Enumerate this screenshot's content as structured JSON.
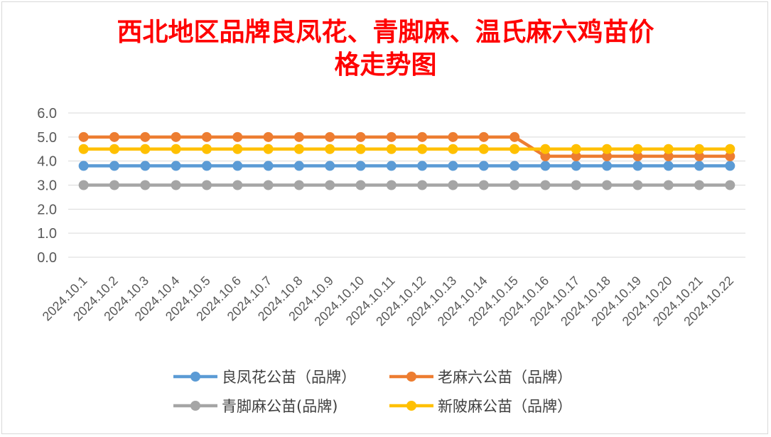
{
  "chart_data": {
    "type": "line",
    "title": "西北地区品牌良凤花、青脚麻、温氏麻六鸡苗价格走势图",
    "title_lines": [
      "西北地区品牌良凤花、青脚麻、温氏麻六鸡苗价",
      "格走势图"
    ],
    "categories": [
      "2024.10.1",
      "2024.10.2",
      "2024.10.3",
      "2024.10.4",
      "2024.10.5",
      "2024.10.6",
      "2024.10.7",
      "2024.10.8",
      "2024.10.9",
      "2024.10.10",
      "2024.10.11",
      "2024.10.12",
      "2024.10.13",
      "2024.10.14",
      "2024.10.15",
      "2024.10.16",
      "2024.10.17",
      "2024.10.18",
      "2024.10.19",
      "2024.10.20",
      "2024.10.21",
      "2024.10.22"
    ],
    "y_ticks": [
      "0.0",
      "1.0",
      "2.0",
      "3.0",
      "4.0",
      "5.0",
      "6.0"
    ],
    "ylim": [
      0,
      6
    ],
    "grid": true,
    "legend_position": "bottom",
    "series": [
      {
        "name": "良凤花公苗（品牌）",
        "color": "#5b9bd5",
        "values": [
          3.8,
          3.8,
          3.8,
          3.8,
          3.8,
          3.8,
          3.8,
          3.8,
          3.8,
          3.8,
          3.8,
          3.8,
          3.8,
          3.8,
          3.8,
          3.8,
          3.8,
          3.8,
          3.8,
          3.8,
          3.8,
          3.8
        ]
      },
      {
        "name": "老麻六公苗（品牌）",
        "color": "#ed7d31",
        "values": [
          5.0,
          5.0,
          5.0,
          5.0,
          5.0,
          5.0,
          5.0,
          5.0,
          5.0,
          5.0,
          5.0,
          5.0,
          5.0,
          5.0,
          5.0,
          4.2,
          4.2,
          4.2,
          4.2,
          4.2,
          4.2,
          4.2
        ]
      },
      {
        "name": "青脚麻公苗(品牌)",
        "color": "#a5a5a5",
        "values": [
          3.0,
          3.0,
          3.0,
          3.0,
          3.0,
          3.0,
          3.0,
          3.0,
          3.0,
          3.0,
          3.0,
          3.0,
          3.0,
          3.0,
          3.0,
          3.0,
          3.0,
          3.0,
          3.0,
          3.0,
          3.0,
          3.0
        ]
      },
      {
        "name": "新陂麻公苗（品牌）",
        "color": "#ffc000",
        "values": [
          4.5,
          4.5,
          4.5,
          4.5,
          4.5,
          4.5,
          4.5,
          4.5,
          4.5,
          4.5,
          4.5,
          4.5,
          4.5,
          4.5,
          4.5,
          4.5,
          4.5,
          4.5,
          4.5,
          4.5,
          4.5,
          4.5
        ]
      }
    ]
  }
}
